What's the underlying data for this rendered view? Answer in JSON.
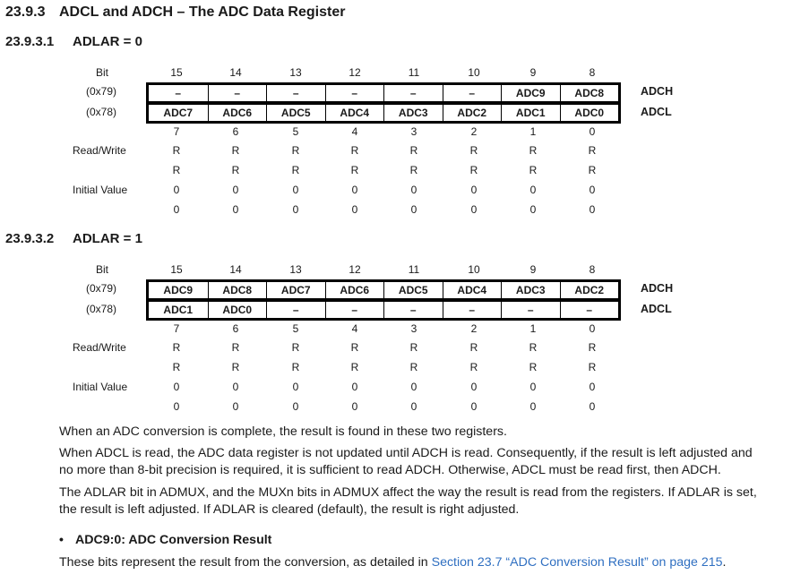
{
  "section": {
    "number": "23.9.3",
    "title": "ADCL and ADCH – The ADC Data Register"
  },
  "sub1": {
    "number": "23.9.3.1",
    "title": "ADLAR = 0",
    "bits_high": [
      "15",
      "14",
      "13",
      "12",
      "11",
      "10",
      "9",
      "8"
    ],
    "addr_high": "(0x79)",
    "row_high": [
      "–",
      "–",
      "–",
      "–",
      "–",
      "–",
      "ADC9",
      "ADC8"
    ],
    "name_high": "ADCH",
    "addr_low": "(0x78)",
    "row_low": [
      "ADC7",
      "ADC6",
      "ADC5",
      "ADC4",
      "ADC3",
      "ADC2",
      "ADC1",
      "ADC0"
    ],
    "name_low": "ADCL",
    "bits_low": [
      "7",
      "6",
      "5",
      "4",
      "3",
      "2",
      "1",
      "0"
    ],
    "rw1": [
      "R",
      "R",
      "R",
      "R",
      "R",
      "R",
      "R",
      "R"
    ],
    "rw2": [
      "R",
      "R",
      "R",
      "R",
      "R",
      "R",
      "R",
      "R"
    ],
    "iv1": [
      "0",
      "0",
      "0",
      "0",
      "0",
      "0",
      "0",
      "0"
    ],
    "iv2": [
      "0",
      "0",
      "0",
      "0",
      "0",
      "0",
      "0",
      "0"
    ]
  },
  "sub2": {
    "number": "23.9.3.2",
    "title": "ADLAR = 1",
    "bits_high": [
      "15",
      "14",
      "13",
      "12",
      "11",
      "10",
      "9",
      "8"
    ],
    "addr_high": "(0x79)",
    "row_high": [
      "ADC9",
      "ADC8",
      "ADC7",
      "ADC6",
      "ADC5",
      "ADC4",
      "ADC3",
      "ADC2"
    ],
    "name_high": "ADCH",
    "addr_low": "(0x78)",
    "row_low": [
      "ADC1",
      "ADC0",
      "–",
      "–",
      "–",
      "–",
      "–",
      "–"
    ],
    "name_low": "ADCL",
    "bits_low": [
      "7",
      "6",
      "5",
      "4",
      "3",
      "2",
      "1",
      "0"
    ],
    "rw1": [
      "R",
      "R",
      "R",
      "R",
      "R",
      "R",
      "R",
      "R"
    ],
    "rw2": [
      "R",
      "R",
      "R",
      "R",
      "R",
      "R",
      "R",
      "R"
    ],
    "iv1": [
      "0",
      "0",
      "0",
      "0",
      "0",
      "0",
      "0",
      "0"
    ],
    "iv2": [
      "0",
      "0",
      "0",
      "0",
      "0",
      "0",
      "0",
      "0"
    ]
  },
  "labels": {
    "bit": "Bit",
    "read_write": "Read/Write",
    "initial_value": "Initial Value"
  },
  "paragraphs": {
    "p1": "When an ADC conversion is complete, the result is found in these two registers.",
    "p2_line1": "When ADCL is read, the ADC data register is not updated until ADCH is read. Consequently, if the result is left adjusted and",
    "p2_line2": "no more than 8-bit precision is required, it is sufficient to read ADCH. Otherwise, ADCL must be read first, then ADCH.",
    "p3_line1": "The ADLAR bit in ADMUX, and the MUXn bits in ADMUX affect the way the result is read from the registers. If ADLAR is set,",
    "p3_line2": "the result is left adjusted. If ADLAR is cleared (default), the result is right adjusted."
  },
  "bullet": {
    "symbol": "•",
    "title": "ADC9:0: ADC Conversion Result",
    "text_before": "These bits represent the result from the conversion, as detailed in ",
    "link_text": "Section 23.7 “ADC Conversion Result” on page 215",
    "text_after": "."
  },
  "colors": {
    "link": "#2f6fc1",
    "text": "#1a1a1a",
    "border": "#000000"
  }
}
